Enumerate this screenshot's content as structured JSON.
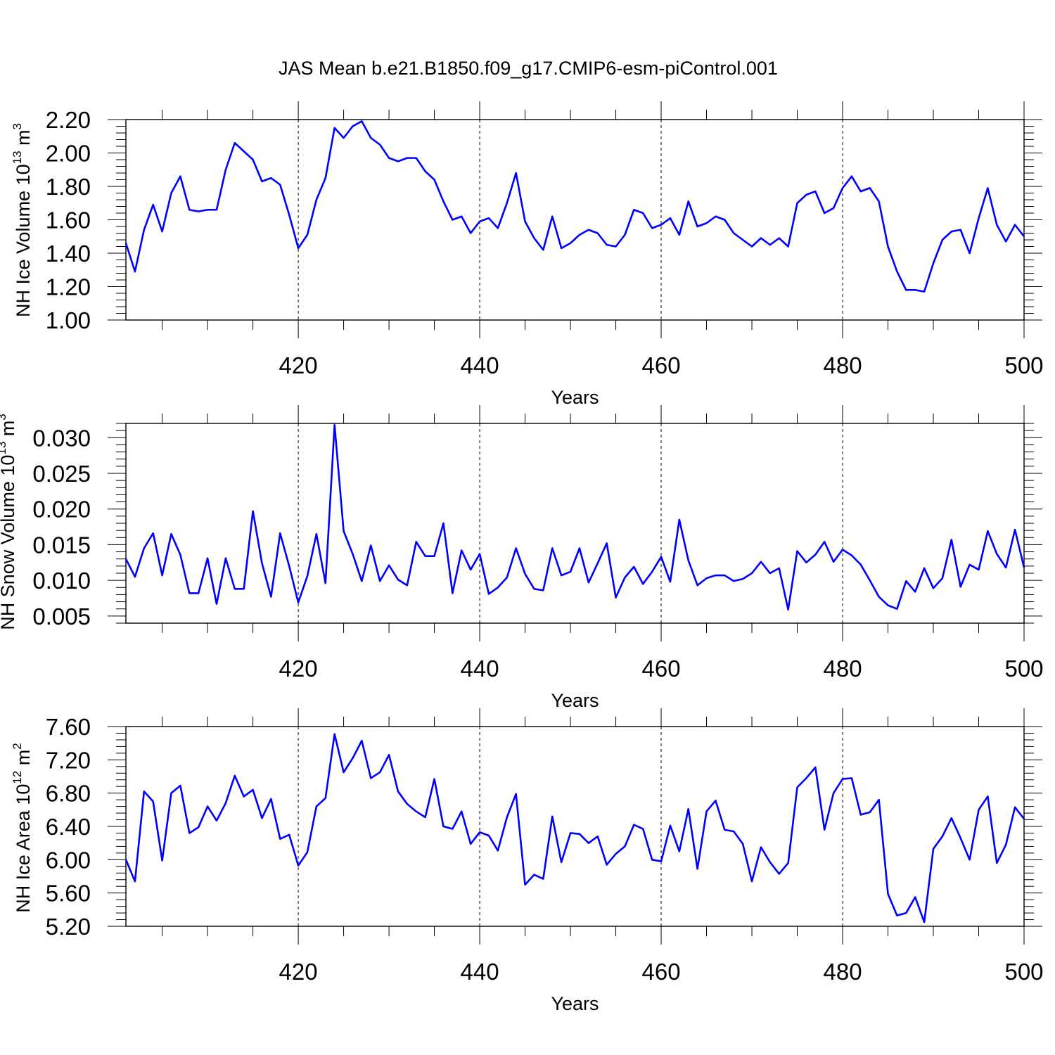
{
  "title": "JAS Mean b.e21.B1850.f09_g17.CMIP6-esm-piControl.001",
  "line_color": "#0000ff",
  "chart_data": [
    {
      "type": "line",
      "ylabel": "NH Ice Volume 10^13 m^3",
      "ylabel_parts": {
        "base": "NH Ice Volume 10",
        "exp1": "13",
        "mid": " m",
        "exp2": "3"
      },
      "xlabel": "Years",
      "xlim": [
        401,
        500
      ],
      "ylim": [
        1.0,
        2.2
      ],
      "x_ticks": [
        "420",
        "440",
        "460",
        "480",
        "500"
      ],
      "y_ticks": [
        "1.00",
        "1.20",
        "1.40",
        "1.60",
        "1.80",
        "2.00",
        "2.20"
      ],
      "grid": "dashed vertical lines at major x ticks",
      "x_start": 401,
      "values": [
        1.46,
        1.29,
        1.54,
        1.69,
        1.53,
        1.76,
        1.86,
        1.66,
        1.65,
        1.66,
        1.66,
        1.9,
        2.06,
        2.01,
        1.96,
        1.83,
        1.85,
        1.81,
        1.63,
        1.43,
        1.51,
        1.72,
        1.85,
        2.15,
        2.09,
        2.16,
        2.19,
        2.09,
        2.05,
        1.97,
        1.95,
        1.97,
        1.97,
        1.89,
        1.84,
        1.71,
        1.6,
        1.62,
        1.52,
        1.59,
        1.61,
        1.55,
        1.7,
        1.88,
        1.59,
        1.49,
        1.42,
        1.62,
        1.43,
        1.46,
        1.51,
        1.54,
        1.52,
        1.45,
        1.44,
        1.51,
        1.66,
        1.64,
        1.55,
        1.57,
        1.61,
        1.51,
        1.71,
        1.56,
        1.58,
        1.62,
        1.6,
        1.52,
        1.48,
        1.44,
        1.49,
        1.45,
        1.49,
        1.44,
        1.7,
        1.75,
        1.77,
        1.64,
        1.67,
        1.79,
        1.86,
        1.77,
        1.79,
        1.71,
        1.44,
        1.29,
        1.18,
        1.18,
        1.17,
        1.34,
        1.48,
        1.53,
        1.54,
        1.4,
        1.61,
        1.79,
        1.57,
        1.47,
        1.57,
        1.5
      ]
    },
    {
      "type": "line",
      "ylabel": "NH Snow Volume 10^13 m^3",
      "ylabel_parts": {
        "base": "NH Snow Volume 10",
        "exp1": "13",
        "mid": " m",
        "exp2": "3"
      },
      "xlabel": "Years",
      "xlim": [
        401,
        500
      ],
      "ylim": [
        0.004,
        0.032
      ],
      "x_ticks": [
        "420",
        "440",
        "460",
        "480",
        "500"
      ],
      "y_ticks": [
        "0.005",
        "0.010",
        "0.015",
        "0.020",
        "0.025",
        "0.030"
      ],
      "grid": "dashed vertical lines at major x ticks",
      "x_start": 401,
      "values": [
        0.013,
        0.0105,
        0.0145,
        0.0166,
        0.0107,
        0.0165,
        0.0136,
        0.0082,
        0.0082,
        0.0131,
        0.0067,
        0.0131,
        0.0088,
        0.0088,
        0.0197,
        0.0124,
        0.0077,
        0.0166,
        0.012,
        0.0069,
        0.0106,
        0.0165,
        0.0096,
        0.0318,
        0.0169,
        0.0137,
        0.0099,
        0.0149,
        0.0099,
        0.0121,
        0.0101,
        0.0093,
        0.0154,
        0.0134,
        0.0134,
        0.018,
        0.0082,
        0.0142,
        0.0115,
        0.0137,
        0.0081,
        0.009,
        0.0104,
        0.0145,
        0.0109,
        0.0088,
        0.0086,
        0.0145,
        0.0107,
        0.0112,
        0.0145,
        0.0097,
        0.0124,
        0.0152,
        0.0076,
        0.0104,
        0.0119,
        0.0095,
        0.0112,
        0.0133,
        0.0098,
        0.0185,
        0.0128,
        0.0093,
        0.0103,
        0.0107,
        0.0107,
        0.0099,
        0.0102,
        0.011,
        0.0126,
        0.011,
        0.0117,
        0.0059,
        0.0141,
        0.0125,
        0.0136,
        0.0154,
        0.0126,
        0.0143,
        0.0135,
        0.0122,
        0.01,
        0.0077,
        0.0065,
        0.006,
        0.0099,
        0.0084,
        0.0117,
        0.0089,
        0.0103,
        0.0157,
        0.0091,
        0.0122,
        0.0115,
        0.0169,
        0.0137,
        0.0118,
        0.0171,
        0.0118
      ]
    },
    {
      "type": "line",
      "ylabel": "NH Ice Area 10^12 m^2",
      "ylabel_parts": {
        "base": "NH Ice Area 10",
        "exp1": "12",
        "mid": " m",
        "exp2": "2"
      },
      "xlabel": "Years",
      "xlim": [
        401,
        500
      ],
      "ylim": [
        5.2,
        7.6
      ],
      "x_ticks": [
        "420",
        "440",
        "460",
        "480",
        "500"
      ],
      "y_ticks": [
        "5.20",
        "5.60",
        "6.00",
        "6.40",
        "6.80",
        "7.20",
        "7.60"
      ],
      "grid": "dashed vertical lines at major x ticks",
      "x_start": 401,
      "values": [
        6.0,
        5.74,
        6.82,
        6.7,
        5.99,
        6.8,
        6.89,
        6.32,
        6.39,
        6.64,
        6.47,
        6.68,
        7.01,
        6.76,
        6.84,
        6.5,
        6.73,
        6.25,
        6.3,
        5.93,
        6.09,
        6.64,
        6.74,
        7.51,
        7.05,
        7.22,
        7.43,
        6.98,
        7.05,
        7.26,
        6.82,
        6.67,
        6.58,
        6.51,
        6.97,
        6.4,
        6.37,
        6.58,
        6.19,
        6.33,
        6.29,
        6.11,
        6.51,
        6.79,
        5.7,
        5.82,
        5.77,
        6.52,
        5.97,
        6.32,
        6.31,
        6.2,
        6.28,
        5.94,
        6.07,
        6.16,
        6.42,
        6.37,
        6.0,
        5.98,
        6.41,
        6.1,
        6.61,
        5.89,
        6.58,
        6.71,
        6.36,
        6.34,
        6.19,
        5.74,
        6.15,
        5.97,
        5.83,
        5.96,
        6.87,
        6.98,
        7.11,
        6.36,
        6.8,
        6.97,
        6.98,
        6.54,
        6.57,
        6.72,
        5.59,
        5.33,
        5.36,
        5.55,
        5.25,
        6.13,
        6.28,
        6.5,
        6.26,
        6.0,
        6.6,
        6.76,
        5.96,
        6.18,
        6.63,
        6.49
      ]
    }
  ]
}
